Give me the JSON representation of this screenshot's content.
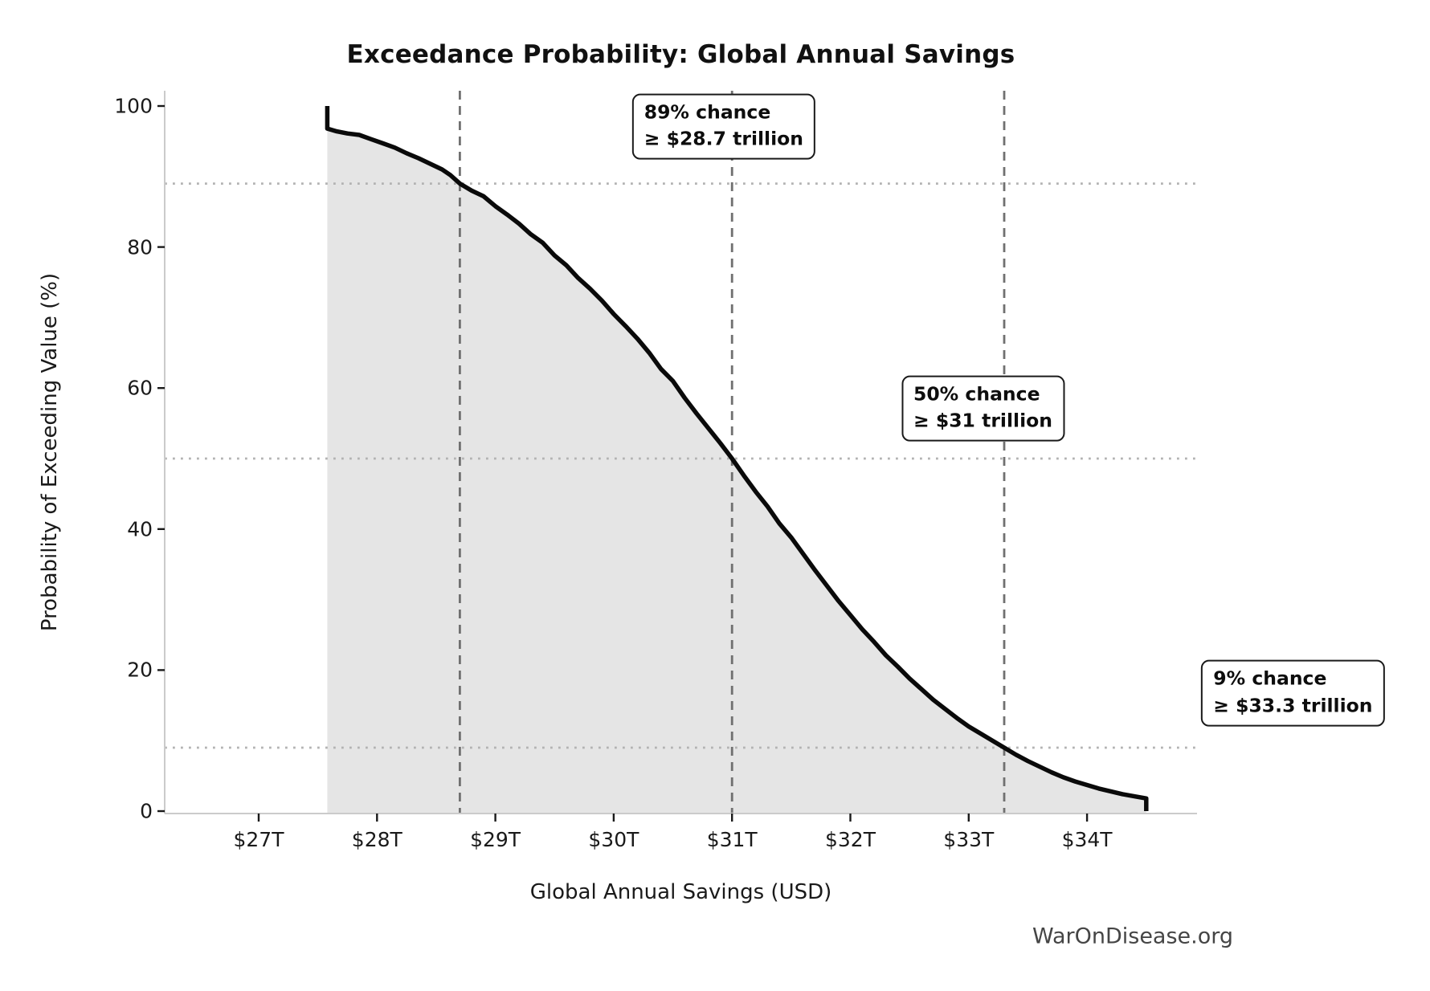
{
  "page": {
    "background": "#ffffff",
    "watermark": "WarOnDisease.org"
  },
  "chart_data": {
    "type": "area",
    "title": "Exceedance Probability: Global Annual Savings",
    "xlabel": "Global Annual Savings (USD)",
    "ylabel": "Probability of Exceeding Value (%)",
    "x_unit": "trillions of USD",
    "xlim": [
      26.2,
      34.93
    ],
    "ylim": [
      0,
      102
    ],
    "grid": {
      "dashed_vlines": [
        28.7,
        31,
        33.3
      ],
      "dotted_hlines": [
        89,
        50,
        9
      ]
    },
    "x_ticks": [
      {
        "value": 27,
        "label": "$27T"
      },
      {
        "value": 28,
        "label": "$28T"
      },
      {
        "value": 29,
        "label": "$29T"
      },
      {
        "value": 30,
        "label": "$30T"
      },
      {
        "value": 31,
        "label": "$31T"
      },
      {
        "value": 32,
        "label": "$32T"
      },
      {
        "value": 33,
        "label": "$33T"
      },
      {
        "value": 34,
        "label": "$34T"
      }
    ],
    "y_ticks": [
      {
        "value": 0,
        "label": "0"
      },
      {
        "value": 20,
        "label": "20"
      },
      {
        "value": 40,
        "label": "40"
      },
      {
        "value": 60,
        "label": "60"
      },
      {
        "value": 80,
        "label": "80"
      },
      {
        "value": 100,
        "label": "100"
      }
    ],
    "series": [
      {
        "name": "Exceedance probability",
        "points": [
          [
            27.58,
            100
          ],
          [
            27.58,
            96.8
          ],
          [
            27.66,
            96.4
          ],
          [
            27.75,
            96.1
          ],
          [
            27.85,
            95.9
          ],
          [
            27.95,
            95.3
          ],
          [
            28.05,
            94.7
          ],
          [
            28.15,
            94.1
          ],
          [
            28.25,
            93.3
          ],
          [
            28.35,
            92.6
          ],
          [
            28.45,
            91.8
          ],
          [
            28.55,
            91.0
          ],
          [
            28.62,
            90.2
          ],
          [
            28.7,
            89.0
          ],
          [
            28.8,
            88.0
          ],
          [
            28.9,
            87.2
          ],
          [
            29.0,
            85.8
          ],
          [
            29.1,
            84.6
          ],
          [
            29.2,
            83.3
          ],
          [
            29.3,
            81.8
          ],
          [
            29.4,
            80.6
          ],
          [
            29.5,
            78.8
          ],
          [
            29.6,
            77.4
          ],
          [
            29.7,
            75.6
          ],
          [
            29.8,
            74.1
          ],
          [
            29.9,
            72.4
          ],
          [
            30.0,
            70.5
          ],
          [
            30.1,
            68.8
          ],
          [
            30.2,
            67.0
          ],
          [
            30.3,
            65.0
          ],
          [
            30.4,
            62.7
          ],
          [
            30.5,
            61.0
          ],
          [
            30.6,
            58.6
          ],
          [
            30.7,
            56.4
          ],
          [
            30.8,
            54.3
          ],
          [
            30.9,
            52.2
          ],
          [
            31.0,
            50.0
          ],
          [
            31.1,
            47.6
          ],
          [
            31.2,
            45.3
          ],
          [
            31.3,
            43.2
          ],
          [
            31.4,
            40.8
          ],
          [
            31.5,
            38.8
          ],
          [
            31.6,
            36.5
          ],
          [
            31.7,
            34.2
          ],
          [
            31.8,
            32.0
          ],
          [
            31.9,
            29.8
          ],
          [
            32.0,
            27.8
          ],
          [
            32.1,
            25.8
          ],
          [
            32.2,
            24.0
          ],
          [
            32.3,
            22.1
          ],
          [
            32.4,
            20.5
          ],
          [
            32.5,
            18.8
          ],
          [
            32.6,
            17.3
          ],
          [
            32.7,
            15.8
          ],
          [
            32.8,
            14.5
          ],
          [
            32.9,
            13.2
          ],
          [
            33.0,
            12.0
          ],
          [
            33.1,
            11.0
          ],
          [
            33.2,
            10.0
          ],
          [
            33.3,
            9.0
          ],
          [
            33.4,
            8.0
          ],
          [
            33.5,
            7.1
          ],
          [
            33.6,
            6.3
          ],
          [
            33.7,
            5.5
          ],
          [
            33.8,
            4.8
          ],
          [
            33.9,
            4.2
          ],
          [
            34.0,
            3.7
          ],
          [
            34.1,
            3.2
          ],
          [
            34.2,
            2.8
          ],
          [
            34.3,
            2.4
          ],
          [
            34.4,
            2.1
          ],
          [
            34.5,
            1.8
          ],
          [
            34.5,
            0
          ]
        ]
      }
    ],
    "annotations": [
      {
        "line1": "89% chance",
        "line2": "≥ $28.7 trillion",
        "prob_pct": 89,
        "value_trillion": 28.7,
        "anchor": {
          "x": 30.93,
          "y": 97.1
        }
      },
      {
        "line1": "50% chance",
        "line2": "≥ $31 trillion",
        "prob_pct": 50,
        "value_trillion": 31,
        "anchor": {
          "x": 33.12,
          "y": 57.1
        }
      },
      {
        "line1": "9% chance",
        "line2": "≥ $33.3 trillion",
        "prob_pct": 9,
        "value_trillion": 33.3,
        "anchor": {
          "x": 35.74,
          "y": 16.7
        }
      }
    ],
    "colors": {
      "curve": "#0a0a0a",
      "fill": "#e5e5e5",
      "dashed_line": "#707070",
      "dotted_line": "#b3b3b3",
      "spine": "#cbcbcb",
      "tick": "#1a1a1a",
      "text": "#111111",
      "watermark": "#454545",
      "annotation_border": "#1a1a1a",
      "annotation_bg": "#ffffff"
    },
    "legend": null
  }
}
